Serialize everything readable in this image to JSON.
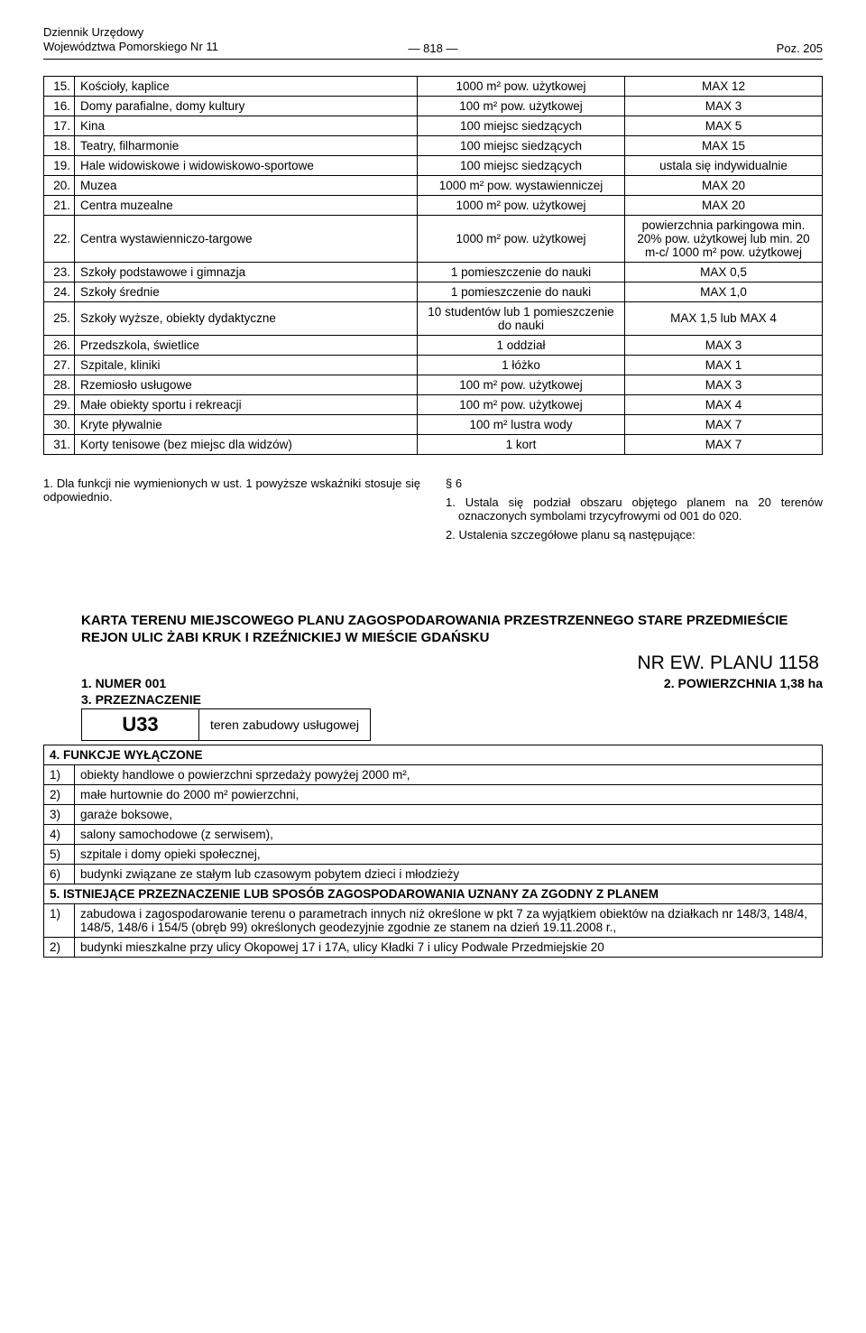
{
  "header": {
    "left_line1": "Dziennik Urzędowy",
    "left_line2": "Województwa Pomorskiego Nr 11",
    "center": "— 818 —",
    "right": "Poz. 205"
  },
  "facility_table": {
    "rows": [
      {
        "n": "15.",
        "name": "Kościoły, kaplice",
        "measure": "1000 m² pow. użytkowej",
        "limit": "MAX 12"
      },
      {
        "n": "16.",
        "name": "Domy parafialne, domy kultury",
        "measure": "100 m² pow. użytkowej",
        "limit": "MAX 3"
      },
      {
        "n": "17.",
        "name": "Kina",
        "measure": "100 miejsc siedzących",
        "limit": "MAX 5"
      },
      {
        "n": "18.",
        "name": "Teatry, filharmonie",
        "measure": "100 miejsc siedzących",
        "limit": "MAX 15"
      },
      {
        "n": "19.",
        "name": "Hale widowiskowe i widowiskowo-sportowe",
        "measure": "100 miejsc siedzących",
        "limit": "ustala się indywidualnie"
      },
      {
        "n": "20.",
        "name": "Muzea",
        "measure": "1000 m² pow. wystawienniczej",
        "limit": "MAX 20"
      },
      {
        "n": "21.",
        "name": "Centra muzealne",
        "measure": "1000 m² pow. użytkowej",
        "limit": "MAX 20"
      },
      {
        "n": "22.",
        "name": "Centra wystawienniczo-targowe",
        "measure": "1000 m² pow. użytkowej",
        "limit": "powierzchnia parkingowa min. 20% pow. użytkowej lub min. 20 m-c/ 1000 m² pow. użytkowej"
      },
      {
        "n": "23.",
        "name": "Szkoły podstawowe i gimnazja",
        "measure": "1 pomieszczenie do nauki",
        "limit": "MAX 0,5"
      },
      {
        "n": "24.",
        "name": "Szkoły średnie",
        "measure": "1 pomieszczenie do nauki",
        "limit": "MAX 1,0"
      },
      {
        "n": "25.",
        "name": "Szkoły wyższe, obiekty dydaktyczne",
        "measure": "10 studentów lub 1 pomieszczenie do nauki",
        "limit": "MAX 1,5 lub MAX 4"
      },
      {
        "n": "26.",
        "name": "Przedszkola, świetlice",
        "measure": "1 oddział",
        "limit": "MAX 3"
      },
      {
        "n": "27.",
        "name": "Szpitale, kliniki",
        "measure": "1 łóżko",
        "limit": "MAX 1"
      },
      {
        "n": "28.",
        "name": "Rzemiosło usługowe",
        "measure": "100 m² pow. użytkowej",
        "limit": "MAX 3"
      },
      {
        "n": "29.",
        "name": "Małe obiekty sportu i rekreacji",
        "measure": "100 m² pow. użytkowej",
        "limit": "MAX 4"
      },
      {
        "n": "30.",
        "name": "Kryte pływalnie",
        "measure": "100 m² lustra wody",
        "limit": "MAX 7"
      },
      {
        "n": "31.",
        "name": "Korty tenisowe (bez miejsc dla widzów)",
        "measure": "1 kort",
        "limit": "MAX 7"
      }
    ]
  },
  "columns": {
    "left_para": "1. Dla funkcji nie wymienionych w ust. 1 powyższe wskaźniki stosuje się odpowiednio.",
    "right_section": "§ 6",
    "right_p1": "1. Ustala się podział obszaru objętego planem na 20 terenów oznaczonych symbolami trzycyfrowymi od 001 do 020.",
    "right_p2": "2. Ustalenia szczegółowe planu są następujące:"
  },
  "card": {
    "title": "KARTA TERENU MIEJSCOWEGO PLANU ZAGOSPODAROWANIA PRZESTRZENNEGO STARE PRZEDMIEŚCIE REJON ULIC ŻABI KRUK I RZEŹNICKIEJ W MIEŚCIE GDAŃSKU",
    "plan_nr": "NR EW. PLANU 1158",
    "num_label": "1. NUMER 001",
    "area_label": "2. POWIERZCHNIA 1,38 ha",
    "sec3": "3. PRZEZNACZENIE",
    "zone_code": "U33",
    "zone_desc": "teren zabudowy usługowej",
    "sec4_head": "4. FUNKCJE WYŁĄCZONE",
    "sec4_items": [
      {
        "n": "1)",
        "t": "obiekty handlowe o powierzchni sprzedaży powyżej 2000 m²,"
      },
      {
        "n": "2)",
        "t": "małe hurtownie do 2000 m² powierzchni,"
      },
      {
        "n": "3)",
        "t": "garaże boksowe,"
      },
      {
        "n": "4)",
        "t": "salony samochodowe (z serwisem),"
      },
      {
        "n": "5)",
        "t": "szpitale i domy opieki społecznej,"
      },
      {
        "n": "6)",
        "t": "budynki związane ze stałym lub czasowym pobytem dzieci i młodzieży"
      }
    ],
    "sec5_head": "5. ISTNIEJĄCE PRZEZNACZENIE LUB SPOSÓB ZAGOSPODAROWANIA UZNANY ZA ZGODNY Z PLANEM",
    "sec5_items": [
      {
        "n": "1)",
        "t": "zabudowa i zagospodarowanie terenu o parametrach innych niż określone w pkt 7 za wyjątkiem obiektów na działkach nr 148/3, 148/4, 148/5, 148/6 i 154/5 (obręb 99) określonych geodezyjnie zgodnie ze stanem na dzień 19.11.2008 r.,"
      },
      {
        "n": "2)",
        "t": "budynki mieszkalne przy ulicy Okopowej 17 i 17A, ulicy Kładki 7 i ulicy Podwale Przedmiejskie 20"
      }
    ]
  }
}
